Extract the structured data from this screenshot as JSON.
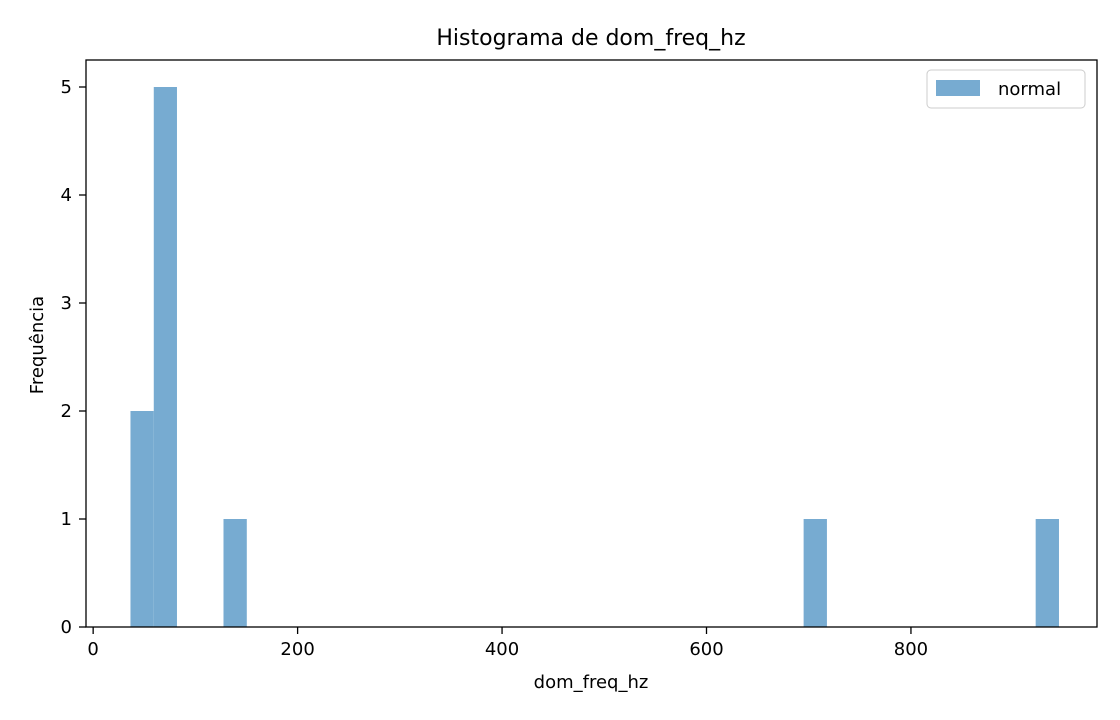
{
  "chart_data": {
    "type": "bar",
    "title": "Histograma de dom_freq_hz",
    "xlabel": "dom_freq_hz",
    "ylabel": "Frequência",
    "xlim": [
      -7,
      982
    ],
    "ylim": [
      0,
      5.25
    ],
    "xticks": [
      0,
      200,
      400,
      600,
      800
    ],
    "yticks": [
      0,
      1,
      2,
      3,
      4,
      5
    ],
    "grid": false,
    "legend_position": "top-right",
    "series": [
      {
        "name": "normal",
        "color": "#77abd1",
        "bins": [
          {
            "x0": 36.5,
            "x1": 59.3,
            "count": 2
          },
          {
            "x0": 59.3,
            "x1": 82.0,
            "count": 5
          },
          {
            "x0": 127.5,
            "x1": 150.3,
            "count": 1
          },
          {
            "x0": 695.0,
            "x1": 717.8,
            "count": 1
          },
          {
            "x0": 922.0,
            "x1": 944.8,
            "count": 1
          }
        ]
      }
    ]
  }
}
